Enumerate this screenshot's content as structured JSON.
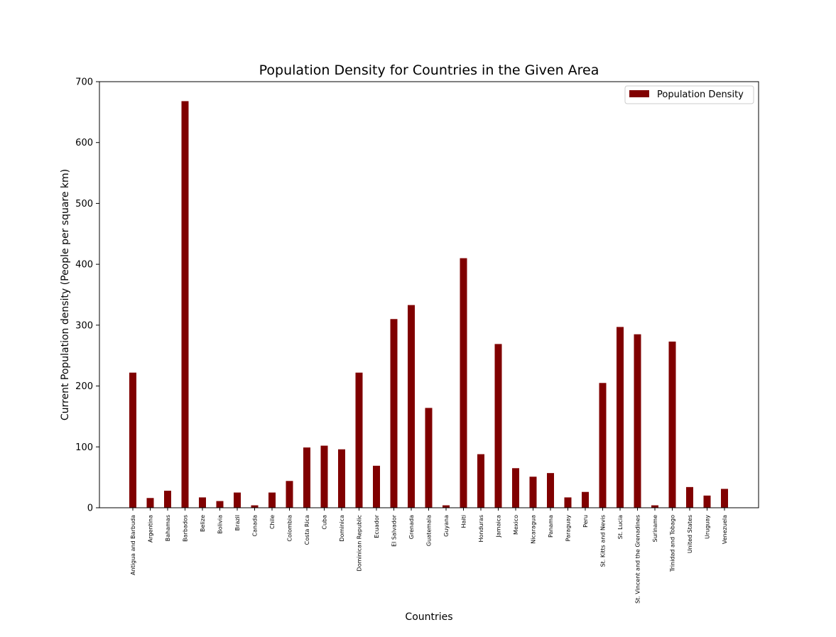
{
  "chart_data": {
    "type": "bar",
    "title": "Population Density for Countries in the Given Area",
    "xlabel": "Countries",
    "ylabel": "Current Population density (People per square km)",
    "ylim": [
      0,
      700
    ],
    "yticks": [
      "0",
      "100",
      "200",
      "300",
      "400",
      "500",
      "600",
      "700"
    ],
    "grid": false,
    "legend_position": "top-right",
    "bar_color": "#800000",
    "series": [
      {
        "name": "Population Density",
        "values": [
          222,
          16,
          28,
          668,
          17,
          11,
          25,
          4,
          25,
          44,
          99,
          102,
          96,
          222,
          69,
          310,
          333,
          164,
          4,
          410,
          88,
          269,
          65,
          51,
          57,
          17,
          26,
          205,
          297,
          285,
          4,
          273,
          34,
          20,
          31
        ]
      }
    ],
    "categories": [
      "Antigua and Barbuda",
      "Argentina",
      "Bahamas",
      "Barbados",
      "Belize",
      "Bolivia",
      "Brazil",
      "Canada",
      "Chile",
      "Colombia",
      "Costa Rica",
      "Cuba",
      "Dominica",
      "Dominican Republic",
      "Ecuador",
      "El Salvador",
      "Grenada",
      "Guatemala",
      "Guyana",
      "Haiti",
      "Honduras",
      "Jamaica",
      "Mexico",
      "Nicaragua",
      "Panama",
      "Paraguay",
      "Peru",
      "St. Kitts and Nevis",
      "St. Lucia",
      "St. Vincent and the Grenadines",
      "Suriname",
      "Trinidad and Tobago",
      "United States",
      "Uruguay",
      "Venezuela"
    ]
  }
}
